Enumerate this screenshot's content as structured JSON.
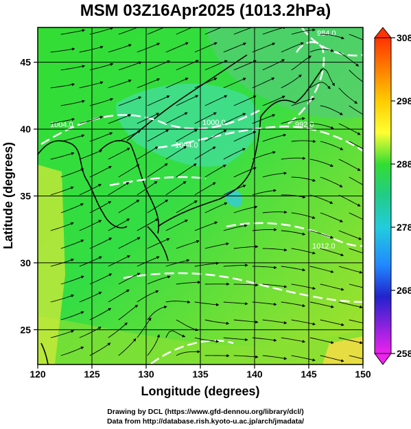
{
  "title": "MSM 03Z16Apr2025 (1013.2hPa)",
  "x_axis": {
    "label": "Longitude (degrees)",
    "ticks": [
      "120",
      "125",
      "130",
      "135",
      "140",
      "145",
      "150"
    ],
    "range": [
      120,
      150
    ]
  },
  "y_axis": {
    "label": "Latitude  (degrees)",
    "ticks": [
      "25",
      "30",
      "35",
      "40",
      "45"
    ],
    "range": [
      22.4,
      47.6
    ]
  },
  "colorbar": {
    "ticks": [
      "308",
      "298",
      "288",
      "278",
      "268",
      "258"
    ],
    "range": [
      258,
      308
    ]
  },
  "contour_labels": [
    "984.0",
    "992.0",
    "1000.0",
    "1004.0",
    "1004.0",
    "1012.0"
  ],
  "credits": [
    "Drawing by DCL (https://www.gfd-dennou.org/library/dcl/)",
    "Data from http://database.rish.kyoto-u.ac.jp/arch/jmadata/"
  ]
}
